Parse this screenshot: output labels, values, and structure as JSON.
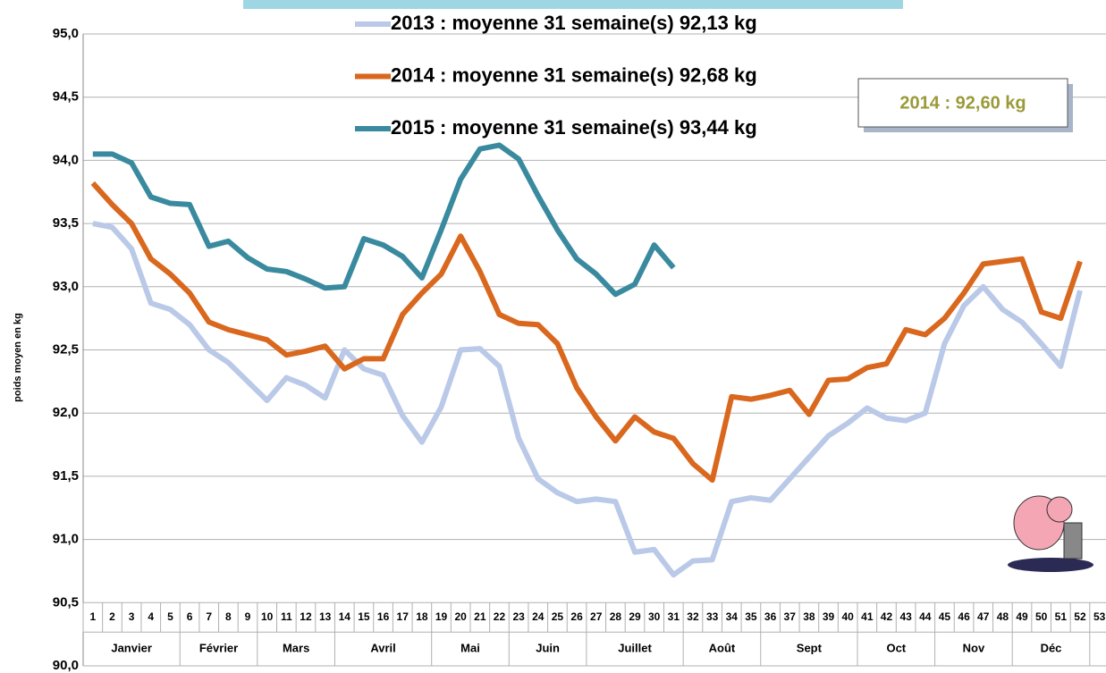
{
  "chart_data": {
    "type": "line",
    "y_label": "poids moyen en kg",
    "annotation": "2014 : 92,60 kg",
    "categories": [
      1,
      2,
      3,
      4,
      5,
      6,
      7,
      8,
      9,
      10,
      11,
      12,
      13,
      14,
      15,
      16,
      17,
      18,
      19,
      20,
      21,
      22,
      23,
      24,
      25,
      26,
      27,
      28,
      29,
      30,
      31,
      32,
      33,
      34,
      35,
      36,
      37,
      38,
      39,
      40,
      41,
      42,
      43,
      44,
      45,
      46,
      47,
      48,
      49,
      50,
      51,
      52,
      53
    ],
    "month_groups": [
      {
        "label": "Janvier",
        "first": 1,
        "last": 5
      },
      {
        "label": "Février",
        "first": 6,
        "last": 9
      },
      {
        "label": "Mars",
        "first": 10,
        "last": 13
      },
      {
        "label": "Avril",
        "first": 14,
        "last": 18
      },
      {
        "label": "Mai",
        "first": 19,
        "last": 22
      },
      {
        "label": "Juin",
        "first": 23,
        "last": 26
      },
      {
        "label": "Juillet",
        "first": 27,
        "last": 31
      },
      {
        "label": "Août",
        "first": 32,
        "last": 35
      },
      {
        "label": "Sept",
        "first": 36,
        "last": 40
      },
      {
        "label": "Oct",
        "first": 41,
        "last": 44
      },
      {
        "label": "Nov",
        "first": 45,
        "last": 48
      },
      {
        "label": "Déc",
        "first": 49,
        "last": 52
      }
    ],
    "series": [
      {
        "name": "2013 : moyenne 31 semaine(s) 92,13 kg",
        "color": "#b9c9e7",
        "values": [
          93.5,
          93.47,
          93.3,
          92.87,
          92.82,
          92.7,
          92.5,
          92.4,
          92.25,
          92.1,
          92.28,
          92.22,
          92.12,
          92.5,
          92.35,
          92.3,
          91.98,
          91.77,
          92.05,
          92.5,
          92.51,
          92.37,
          91.8,
          91.48,
          91.37,
          91.3,
          91.32,
          91.3,
          90.9,
          90.92,
          90.72,
          90.83,
          90.84,
          91.3,
          91.33,
          91.31,
          91.48,
          91.65,
          91.82,
          91.92,
          92.04,
          91.96,
          91.94,
          92.0,
          92.55,
          92.85,
          93.0,
          92.82,
          92.72,
          92.55,
          92.37,
          92.97,
          null
        ]
      },
      {
        "name": "2014 : moyenne 31 semaine(s) 92,68 kg",
        "color": "#d9681e",
        "values": [
          93.82,
          93.65,
          93.5,
          93.22,
          93.1,
          92.95,
          92.72,
          92.66,
          92.62,
          92.58,
          92.46,
          92.49,
          92.53,
          92.35,
          92.43,
          92.43,
          92.78,
          92.95,
          93.1,
          93.4,
          93.12,
          92.78,
          92.71,
          92.7,
          92.55,
          92.2,
          91.97,
          91.78,
          91.97,
          91.85,
          91.8,
          91.6,
          91.47,
          92.13,
          92.11,
          92.14,
          92.18,
          91.99,
          92.26,
          92.27,
          92.36,
          92.39,
          92.66,
          92.62,
          92.75,
          92.95,
          93.18,
          93.2,
          93.22,
          92.8,
          92.75,
          93.2,
          null
        ]
      },
      {
        "name": "2015 : moyenne 31 semaine(s) 93,44 kg",
        "color": "#3a8a9f",
        "values": [
          94.05,
          94.05,
          93.98,
          93.71,
          93.66,
          93.65,
          93.32,
          93.36,
          93.23,
          93.14,
          93.12,
          93.06,
          92.99,
          93.0,
          93.38,
          93.33,
          93.24,
          93.07,
          93.45,
          93.85,
          94.09,
          94.12,
          94.01,
          93.72,
          93.45,
          93.22,
          93.1,
          92.94,
          93.02,
          93.33,
          93.15,
          null,
          null,
          null,
          null,
          null,
          null,
          null,
          null,
          null,
          null,
          null,
          null,
          null,
          null,
          null,
          null,
          null,
          null,
          null,
          null,
          null,
          null
        ]
      }
    ],
    "ylim": [
      90,
      95
    ],
    "yticks": [
      {
        "value": 90,
        "label": "90,0"
      },
      {
        "value": 90.5,
        "label": "90,5"
      },
      {
        "value": 91,
        "label": "91,0"
      },
      {
        "value": 91.5,
        "label": "91,5"
      },
      {
        "value": 92,
        "label": "92,0"
      },
      {
        "value": 92.5,
        "label": "92,5"
      },
      {
        "value": 93,
        "label": "93,0"
      },
      {
        "value": 93.5,
        "label": "93,5"
      },
      {
        "value": 94,
        "label": "94,0"
      },
      {
        "value": 94.5,
        "label": "94,5"
      },
      {
        "value": 95,
        "label": "95,0"
      }
    ],
    "grid": true
  }
}
